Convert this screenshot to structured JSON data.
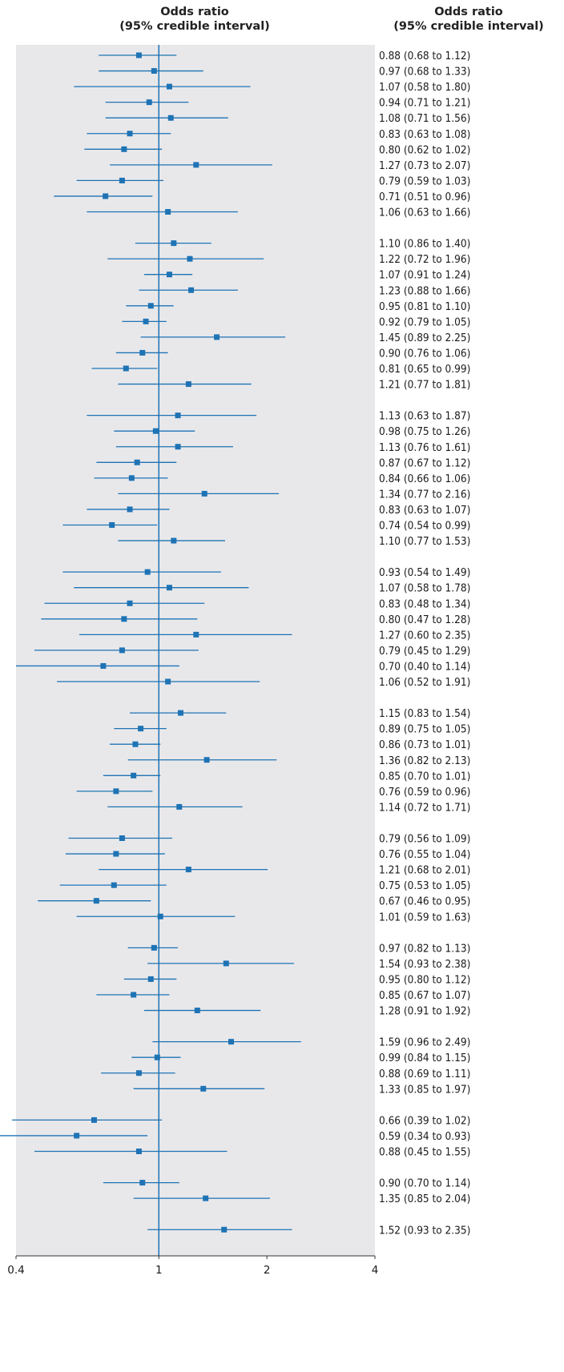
{
  "header": {
    "left_line1": "Odds ratio",
    "left_line2": "(95% credible interval)",
    "right_line1": "Odds ratio",
    "right_line2": "(95% credible interval)"
  },
  "colors": {
    "panel": "#e8e8eb",
    "marker": "#1e73b4",
    "ci_line": "#1e73b4",
    "reference_line": "#1e73b4",
    "text": "#1a1a1a"
  },
  "chart_data": {
    "type": "forest",
    "x_scale": "log",
    "xlim": [
      0.4,
      4
    ],
    "x_ticks": [
      0.4,
      1,
      2,
      4
    ],
    "x_tick_labels": [
      "0.4",
      "1",
      "2",
      "4"
    ],
    "reference_value": 1,
    "grid": false,
    "groups": [
      {
        "rows": [
          {
            "or": 0.88,
            "lo": 0.68,
            "hi": 1.12,
            "label": "0.88 (0.68 to 1.12)"
          },
          {
            "or": 0.97,
            "lo": 0.68,
            "hi": 1.33,
            "label": "0.97 (0.68 to 1.33)"
          },
          {
            "or": 1.07,
            "lo": 0.58,
            "hi": 1.8,
            "label": "1.07 (0.58 to 1.80)"
          },
          {
            "or": 0.94,
            "lo": 0.71,
            "hi": 1.21,
            "label": "0.94 (0.71 to 1.21)"
          },
          {
            "or": 1.08,
            "lo": 0.71,
            "hi": 1.56,
            "label": "1.08 (0.71 to 1.56)"
          },
          {
            "or": 0.83,
            "lo": 0.63,
            "hi": 1.08,
            "label": "0.83 (0.63 to 1.08)"
          },
          {
            "or": 0.8,
            "lo": 0.62,
            "hi": 1.02,
            "label": "0.80 (0.62 to 1.02)"
          },
          {
            "or": 1.27,
            "lo": 0.73,
            "hi": 2.07,
            "label": "1.27 (0.73 to 2.07)"
          },
          {
            "or": 0.79,
            "lo": 0.59,
            "hi": 1.03,
            "label": "0.79 (0.59 to 1.03)"
          },
          {
            "or": 0.71,
            "lo": 0.51,
            "hi": 0.96,
            "label": "0.71 (0.51 to 0.96)"
          },
          {
            "or": 1.06,
            "lo": 0.63,
            "hi": 1.66,
            "label": "1.06 (0.63 to 1.66)"
          }
        ]
      },
      {
        "rows": [
          {
            "or": 1.1,
            "lo": 0.86,
            "hi": 1.4,
            "label": "1.10 (0.86 to 1.40)"
          },
          {
            "or": 1.22,
            "lo": 0.72,
            "hi": 1.96,
            "label": "1.22 (0.72 to 1.96)"
          },
          {
            "or": 1.07,
            "lo": 0.91,
            "hi": 1.24,
            "label": "1.07 (0.91 to 1.24)"
          },
          {
            "or": 1.23,
            "lo": 0.88,
            "hi": 1.66,
            "label": "1.23 (0.88 to 1.66)"
          },
          {
            "or": 0.95,
            "lo": 0.81,
            "hi": 1.1,
            "label": "0.95 (0.81 to 1.10)"
          },
          {
            "or": 0.92,
            "lo": 0.79,
            "hi": 1.05,
            "label": "0.92 (0.79 to 1.05)"
          },
          {
            "or": 1.45,
            "lo": 0.89,
            "hi": 2.25,
            "label": "1.45 (0.89 to 2.25)"
          },
          {
            "or": 0.9,
            "lo": 0.76,
            "hi": 1.06,
            "label": "0.90 (0.76 to 1.06)"
          },
          {
            "or": 0.81,
            "lo": 0.65,
            "hi": 0.99,
            "label": "0.81 (0.65 to 0.99)"
          },
          {
            "or": 1.21,
            "lo": 0.77,
            "hi": 1.81,
            "label": "1.21 (0.77 to 1.81)"
          }
        ]
      },
      {
        "rows": [
          {
            "or": 1.13,
            "lo": 0.63,
            "hi": 1.87,
            "label": "1.13 (0.63 to 1.87)"
          },
          {
            "or": 0.98,
            "lo": 0.75,
            "hi": 1.26,
            "label": "0.98 (0.75 to 1.26)"
          },
          {
            "or": 1.13,
            "lo": 0.76,
            "hi": 1.61,
            "label": "1.13 (0.76 to 1.61)"
          },
          {
            "or": 0.87,
            "lo": 0.67,
            "hi": 1.12,
            "label": "0.87 (0.67 to 1.12)"
          },
          {
            "or": 0.84,
            "lo": 0.66,
            "hi": 1.06,
            "label": "0.84 (0.66 to 1.06)"
          },
          {
            "or": 1.34,
            "lo": 0.77,
            "hi": 2.16,
            "label": "1.34 (0.77 to 2.16)"
          },
          {
            "or": 0.83,
            "lo": 0.63,
            "hi": 1.07,
            "label": "0.83 (0.63 to 1.07)"
          },
          {
            "or": 0.74,
            "lo": 0.54,
            "hi": 0.99,
            "label": "0.74 (0.54 to 0.99)"
          },
          {
            "or": 1.1,
            "lo": 0.77,
            "hi": 1.53,
            "label": "1.10 (0.77 to 1.53)"
          }
        ]
      },
      {
        "rows": [
          {
            "or": 0.93,
            "lo": 0.54,
            "hi": 1.49,
            "label": "0.93 (0.54 to 1.49)"
          },
          {
            "or": 1.07,
            "lo": 0.58,
            "hi": 1.78,
            "label": "1.07 (0.58 to 1.78)"
          },
          {
            "or": 0.83,
            "lo": 0.48,
            "hi": 1.34,
            "label": "0.83 (0.48 to 1.34)"
          },
          {
            "or": 0.8,
            "lo": 0.47,
            "hi": 1.28,
            "label": "0.80 (0.47 to 1.28)"
          },
          {
            "or": 1.27,
            "lo": 0.6,
            "hi": 2.35,
            "label": "1.27 (0.60 to 2.35)"
          },
          {
            "or": 0.79,
            "lo": 0.45,
            "hi": 1.29,
            "label": "0.79 (0.45 to 1.29)"
          },
          {
            "or": 0.7,
            "lo": 0.4,
            "hi": 1.14,
            "label": "0.70 (0.40 to 1.14)"
          },
          {
            "or": 1.06,
            "lo": 0.52,
            "hi": 1.91,
            "label": "1.06 (0.52 to 1.91)"
          }
        ]
      },
      {
        "rows": [
          {
            "or": 1.15,
            "lo": 0.83,
            "hi": 1.54,
            "label": "1.15 (0.83 to 1.54)"
          },
          {
            "or": 0.89,
            "lo": 0.75,
            "hi": 1.05,
            "label": "0.89 (0.75 to 1.05)"
          },
          {
            "or": 0.86,
            "lo": 0.73,
            "hi": 1.01,
            "label": "0.86 (0.73 to 1.01)"
          },
          {
            "or": 1.36,
            "lo": 0.82,
            "hi": 2.13,
            "label": "1.36 (0.82 to 2.13)"
          },
          {
            "or": 0.85,
            "lo": 0.7,
            "hi": 1.01,
            "label": "0.85 (0.70 to 1.01)"
          },
          {
            "or": 0.76,
            "lo": 0.59,
            "hi": 0.96,
            "label": "0.76 (0.59 to 0.96)"
          },
          {
            "or": 1.14,
            "lo": 0.72,
            "hi": 1.71,
            "label": "1.14 (0.72 to 1.71)"
          }
        ]
      },
      {
        "rows": [
          {
            "or": 0.79,
            "lo": 0.56,
            "hi": 1.09,
            "label": "0.79 (0.56 to 1.09)"
          },
          {
            "or": 0.76,
            "lo": 0.55,
            "hi": 1.04,
            "label": "0.76 (0.55 to 1.04)"
          },
          {
            "or": 1.21,
            "lo": 0.68,
            "hi": 2.01,
            "label": "1.21 (0.68 to 2.01)"
          },
          {
            "or": 0.75,
            "lo": 0.53,
            "hi": 1.05,
            "label": "0.75 (0.53 to 1.05)"
          },
          {
            "or": 0.67,
            "lo": 0.46,
            "hi": 0.95,
            "label": "0.67 (0.46 to 0.95)"
          },
          {
            "or": 1.01,
            "lo": 0.59,
            "hi": 1.63,
            "label": "1.01 (0.59 to 1.63)"
          }
        ]
      },
      {
        "rows": [
          {
            "or": 0.97,
            "lo": 0.82,
            "hi": 1.13,
            "label": "0.97 (0.82 to 1.13)"
          },
          {
            "or": 1.54,
            "lo": 0.93,
            "hi": 2.38,
            "label": "1.54 (0.93 to 2.38)"
          },
          {
            "or": 0.95,
            "lo": 0.8,
            "hi": 1.12,
            "label": "0.95 (0.80 to 1.12)"
          },
          {
            "or": 0.85,
            "lo": 0.67,
            "hi": 1.07,
            "label": "0.85 (0.67 to 1.07)"
          },
          {
            "or": 1.28,
            "lo": 0.91,
            "hi": 1.92,
            "label": "1.28 (0.91 to 1.92)"
          }
        ]
      },
      {
        "rows": [
          {
            "or": 1.59,
            "lo": 0.96,
            "hi": 2.49,
            "label": "1.59 (0.96 to 2.49)"
          },
          {
            "or": 0.99,
            "lo": 0.84,
            "hi": 1.15,
            "label": "0.99 (0.84 to 1.15)"
          },
          {
            "or": 0.88,
            "lo": 0.69,
            "hi": 1.11,
            "label": "0.88 (0.69 to 1.11)"
          },
          {
            "or": 1.33,
            "lo": 0.85,
            "hi": 1.97,
            "label": "1.33 (0.85 to 1.97)"
          }
        ]
      },
      {
        "rows": [
          {
            "or": 0.66,
            "lo": 0.39,
            "hi": 1.02,
            "label": "0.66 (0.39 to 1.02)"
          },
          {
            "or": 0.59,
            "lo": 0.34,
            "hi": 0.93,
            "label": "0.59 (0.34 to 0.93)"
          },
          {
            "or": 0.88,
            "lo": 0.45,
            "hi": 1.55,
            "label": "0.88 (0.45 to 1.55)"
          }
        ]
      },
      {
        "rows": [
          {
            "or": 0.9,
            "lo": 0.7,
            "hi": 1.14,
            "label": "0.90 (0.70 to 1.14)"
          },
          {
            "or": 1.35,
            "lo": 0.85,
            "hi": 2.04,
            "label": "1.35 (0.85 to 2.04)"
          }
        ]
      },
      {
        "rows": [
          {
            "or": 1.52,
            "lo": 0.93,
            "hi": 2.35,
            "label": "1.52 (0.93 to 2.35)"
          }
        ]
      }
    ]
  }
}
